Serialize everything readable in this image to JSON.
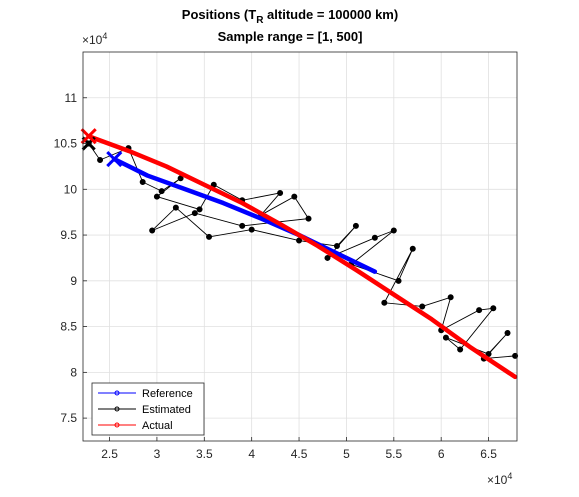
{
  "chart_data": {
    "type": "line",
    "title_line1_main": "Positions (T",
    "title_line1_sub": "R",
    "title_line1_rest": " altitude = 100000 km)",
    "title_line2": "Sample range = [1, 500]",
    "xlabel": "",
    "ylabel": "",
    "x_exponent_label": "×10",
    "x_exponent_power": "4",
    "y_exponent_label": "×10",
    "y_exponent_power": "4",
    "xlim": [
      2.22,
      6.8
    ],
    "ylim": [
      7.25,
      11.5
    ],
    "x_ticks": [
      2.5,
      3,
      3.5,
      4,
      4.5,
      5,
      5.5,
      6,
      6.5
    ],
    "y_ticks": [
      7.5,
      8,
      8.5,
      9,
      9.5,
      10,
      10.5,
      11
    ],
    "x_tick_labels": [
      "2.5",
      "3",
      "3.5",
      "4",
      "4.5",
      "5",
      "5.5",
      "6",
      "6.5"
    ],
    "y_tick_labels": [
      "7.5",
      "8",
      "8.5",
      "9",
      "9.5",
      "10",
      "10.5",
      "11"
    ],
    "grid": true,
    "legend_position": "bottom-left",
    "series": [
      {
        "name": "Reference",
        "color": "#0000ff",
        "x": [
          2.55,
          2.9,
          3.3,
          3.7,
          4.1,
          4.5,
          4.9,
          5.3
        ],
        "y": [
          10.33,
          10.15,
          10.0,
          9.85,
          9.68,
          9.5,
          9.3,
          9.1
        ],
        "end_marker": "x",
        "end_x": 2.55,
        "end_y": 10.33
      },
      {
        "name": "Estimated",
        "color": "#000000",
        "x": [
          2.28,
          2.4,
          2.7,
          2.85,
          3.05,
          3.25,
          3.0,
          3.45,
          3.6,
          3.9,
          4.3,
          4.1,
          4.45,
          4.6,
          3.9,
          3.4,
          2.95,
          3.2,
          3.55,
          4.0,
          4.5,
          4.9,
          5.1,
          4.8,
          5.3,
          5.5,
          5.05,
          5.55,
          5.7,
          5.4,
          5.8,
          6.1,
          6.0,
          6.4,
          6.55,
          6.2,
          6.05,
          6.5,
          6.7,
          6.45,
          6.78
        ],
        "y": [
          10.5,
          10.32,
          10.45,
          10.08,
          9.98,
          10.12,
          9.92,
          9.78,
          10.05,
          9.88,
          9.96,
          9.72,
          9.92,
          9.68,
          9.6,
          9.74,
          9.55,
          9.8,
          9.48,
          9.56,
          9.44,
          9.38,
          9.6,
          9.25,
          9.47,
          9.55,
          9.18,
          9.0,
          9.35,
          8.76,
          8.72,
          8.82,
          8.46,
          8.68,
          8.7,
          8.25,
          8.38,
          8.2,
          8.43,
          8.15,
          8.18
        ]
      },
      {
        "name": "Actual",
        "color": "#ff0000",
        "x": [
          2.28,
          2.7,
          3.1,
          3.5,
          3.9,
          4.3,
          4.7,
          5.1,
          5.5,
          5.9,
          6.3,
          6.78
        ],
        "y": [
          10.58,
          10.42,
          10.25,
          10.05,
          9.85,
          9.62,
          9.38,
          9.12,
          8.85,
          8.58,
          8.28,
          7.95
        ],
        "end_marker": "x",
        "end_x": 2.28,
        "end_y": 10.58
      }
    ],
    "legend_entries": [
      "Reference",
      "Estimated",
      "Actual"
    ]
  }
}
